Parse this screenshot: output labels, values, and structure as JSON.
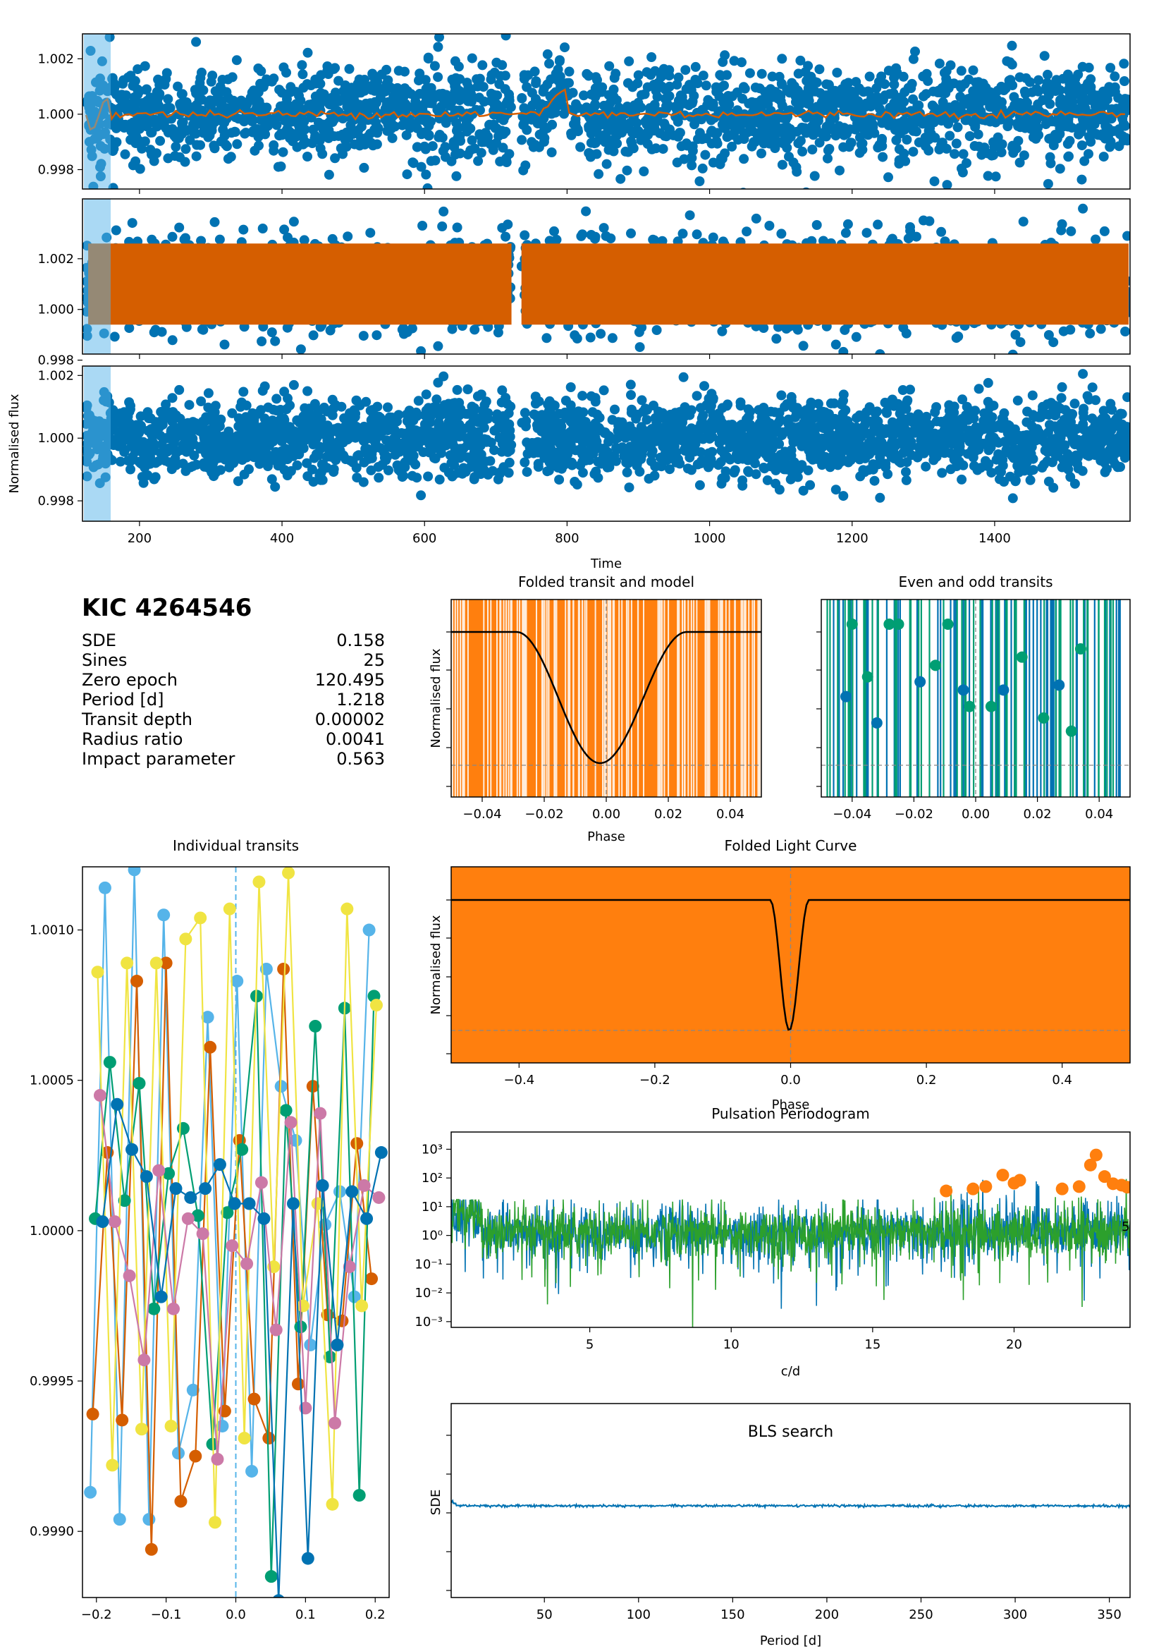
{
  "colors": {
    "blue": "#0072b2",
    "orange": "#d55e00",
    "bright_orange": "#ff7f0e",
    "green": "#2ca02c",
    "sky": "#56b4e9",
    "teal": "#009e73",
    "yellow": "#f0e442",
    "pink": "#cc79a7"
  },
  "summary": {
    "kic": "KIC 4264546",
    "rows": [
      {
        "label": "SDE",
        "value": "0.158"
      },
      {
        "label": "Sines",
        "value": "25"
      },
      {
        "label": "Zero epoch",
        "value": "120.495"
      },
      {
        "label": "Period [d]",
        "value": "1.218"
      },
      {
        "label": "Transit depth",
        "value": "0.00002"
      },
      {
        "label": "Radius ratio",
        "value": "0.0041"
      },
      {
        "label": "Impact parameter",
        "value": "0.563"
      }
    ]
  },
  "chart_data": [
    {
      "id": "raw",
      "type": "scatter",
      "xlim": [
        120,
        1590
      ],
      "ylim": [
        0.9973,
        1.0029
      ],
      "yticks": [
        "0.998",
        "1.000",
        "1.002"
      ],
      "xticks": [],
      "series": [
        {
          "color": "blue",
          "style": "points"
        },
        {
          "color": "orange",
          "style": "trend"
        }
      ]
    },
    {
      "id": "detrended",
      "type": "scatter",
      "xlim": [
        120,
        1590
      ],
      "ylim": [
        0.99962,
        1.00268
      ],
      "yticks": [
        "0.998",
        "1.000",
        "1.002"
      ],
      "xticks": [],
      "series": [
        {
          "color": "blue",
          "style": "points"
        },
        {
          "color": "orange",
          "style": "model"
        }
      ]
    },
    {
      "id": "residuals",
      "type": "scatter",
      "xlim": [
        120,
        1590
      ],
      "ylim": [
        0.99735,
        1.0023
      ],
      "yticks": [
        "0.998",
        "1.000",
        "1.002"
      ],
      "ylabel": "Normalised flux",
      "xlabel": "Time",
      "xticks": [
        "200",
        "400",
        "600",
        "800",
        "1000",
        "1200",
        "1400"
      ],
      "gap": [
        722,
        736
      ]
    },
    {
      "id": "folded-transit",
      "type": "line",
      "title": "Folded transit and model",
      "xlabel": "Phase",
      "ylabel": "Normalised flux",
      "xlim": [
        -0.05,
        0.05
      ],
      "xticks": [
        "−0.04",
        "−0.02",
        "0.00",
        "0.02",
        "0.04"
      ],
      "model": {
        "phase_start": -0.029,
        "phase_end": 0.026,
        "min_phase": -0.002
      }
    },
    {
      "id": "even-odd",
      "type": "line",
      "title": "Even and odd transits",
      "xlim": [
        -0.05,
        0.05
      ],
      "xticks": [
        "−0.04",
        "−0.02",
        "0.00",
        "0.02",
        "0.04"
      ],
      "points": [
        [
          -0.042,
          0.0001
        ],
        [
          -0.04,
          0.0045
        ],
        [
          -0.035,
          0.0013
        ],
        [
          -0.032,
          -0.0015
        ],
        [
          -0.028,
          0.0045
        ],
        [
          -0.025,
          0.0045
        ],
        [
          -0.018,
          0.001
        ],
        [
          -0.013,
          0.002
        ],
        [
          -0.009,
          0.0045
        ],
        [
          -0.004,
          0.0005
        ],
        [
          -0.002,
          -0.0005
        ],
        [
          0.005,
          -0.0005
        ],
        [
          0.009,
          0.0005
        ],
        [
          0.015,
          0.0025
        ],
        [
          0.022,
          -0.0012
        ],
        [
          0.027,
          0.0008
        ],
        [
          0.031,
          -0.002
        ],
        [
          0.034,
          0.003
        ]
      ]
    },
    {
      "id": "individual",
      "type": "line",
      "title": "Individual transits",
      "xlim": [
        -0.22,
        0.22
      ],
      "ylim": [
        0.99878,
        1.00121
      ],
      "yticks": [
        "0.9990",
        "0.9995",
        "1.0000",
        "1.0005",
        "1.0010"
      ],
      "xticks": [
        "−0.2",
        "−0.1",
        "0.0",
        "0.1",
        "0.2"
      ],
      "series": [
        {
          "color": "sky",
          "values": [
            0.99913,
            1.00114,
            0.99904,
            1.0012,
            0.99904,
            1.00105,
            0.99926,
            0.99947,
            1.00071,
            0.99935,
            1.00083,
            0.9992,
            1.00087,
            1.00048,
            1.0003,
            0.99962,
            1.00002,
            1.00013,
            0.99978,
            1.001
          ]
        },
        {
          "color": "orange",
          "values": [
            0.99939,
            1.00026,
            0.99937,
            1.00083,
            0.99894,
            1.00089,
            0.9991,
            0.99925,
            1.00061,
            0.9994,
            1.0003,
            0.99944,
            0.99931,
            1.00087,
            0.99949,
            1.00048,
            0.99972,
            0.9997,
            1.00029,
            0.99984
          ]
        },
        {
          "color": "teal",
          "values": [
            1.00004,
            1.00056,
            1.0001,
            1.00049,
            0.99974,
            1.00019,
            1.00034,
            1.00005,
            0.99929,
            1.00006,
            1.00027,
            1.00078,
            0.99885,
            1.0004,
            0.99968,
            1.00068,
            0.99958,
            1.00074,
            0.99912,
            1.00078
          ]
        },
        {
          "color": "yellow",
          "values": [
            1.00086,
            0.99922,
            1.00089,
            0.99934,
            1.00089,
            0.99935,
            1.00097,
            1.00104,
            0.99903,
            1.00107,
            0.99931,
            1.00116,
            0.99988,
            1.00119,
            0.99975,
            1.00009,
            0.99909,
            1.00107,
            0.99975,
            1.00075
          ]
        },
        {
          "color": "pink",
          "values": [
            1.00045,
            1.00003,
            0.99985,
            0.99957,
            1.0002,
            0.99974,
            1.00004,
            0.99999,
            0.99924,
            0.99995,
            0.99989,
            1.00016,
            0.99967,
            1.00036,
            0.99941,
            1.00039,
            0.99936,
            0.99988,
            1.00015,
            1.00011
          ]
        },
        {
          "color": "blue",
          "values": [
            1.00003,
            1.00042,
            1.00027,
            1.00018,
            0.99978,
            1.00014,
            1.00011,
            1.00014,
            1.00022,
            1.00009,
            1.00009,
            1.00004,
            0.99877,
            1.00009,
            0.99891,
            1.00015,
            0.99962,
            1.00013,
            1.00004,
            1.00026
          ]
        }
      ]
    },
    {
      "id": "folded-lc",
      "type": "line",
      "title": "Folded Light Curve",
      "xlabel": "Phase",
      "ylabel": "Normalised flux",
      "xlim": [
        -0.5,
        0.5
      ],
      "xticks": [
        "−0.4",
        "−0.2",
        "0.0",
        "0.2",
        "0.4"
      ],
      "model": {
        "phase_start": -0.03,
        "phase_end": 0.027,
        "min_phase": -0.002
      }
    },
    {
      "id": "periodogram",
      "type": "line",
      "title": "Pulsation Periodogram",
      "xlabel": "c/d",
      "xlim": [
        0.1,
        24.1
      ],
      "ylog": true,
      "ylim_exp": [
        -3.2,
        3.6
      ],
      "yticks": [
        "10⁻³",
        "10⁻²",
        "10⁻¹",
        "10⁰",
        "10¹",
        "10²",
        "10³"
      ],
      "xticks": [
        "5",
        "10",
        "15",
        "20"
      ],
      "side_label": "5",
      "peaks": [
        [
          17.6,
          1.55
        ],
        [
          18.55,
          1.62
        ],
        [
          19.0,
          1.7
        ],
        [
          19.6,
          2.1
        ],
        [
          20.0,
          1.82
        ],
        [
          20.2,
          1.92
        ],
        [
          21.7,
          1.62
        ],
        [
          22.3,
          1.7
        ],
        [
          22.7,
          2.45
        ],
        [
          22.9,
          2.8
        ],
        [
          23.2,
          2.05
        ],
        [
          23.5,
          1.8
        ],
        [
          23.8,
          1.75
        ],
        [
          24.0,
          1.68
        ]
      ]
    },
    {
      "id": "bls",
      "type": "line",
      "title": "BLS search",
      "xlabel": "Period [d]",
      "ylabel": "SDE",
      "xlim": [
        0.5,
        361
      ],
      "xticks": [
        "50",
        "100",
        "150",
        "200",
        "250",
        "300",
        "350"
      ]
    }
  ]
}
